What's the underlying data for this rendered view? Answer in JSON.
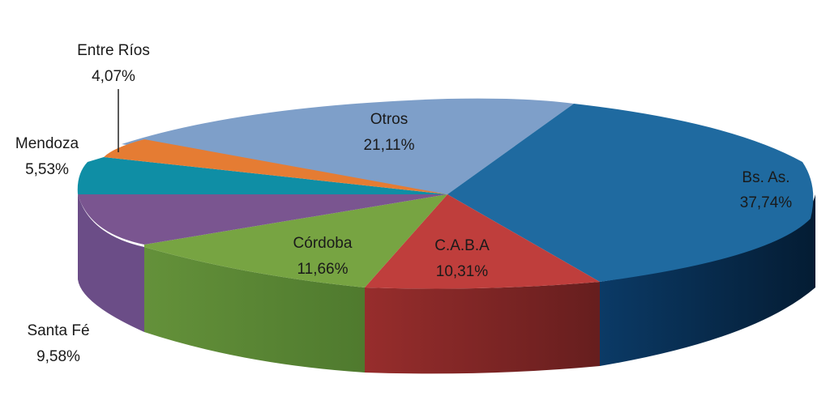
{
  "chart_data": {
    "type": "pie",
    "style": "3d",
    "title": "",
    "slices": [
      {
        "label": "Bs. As.",
        "value": 37.74,
        "display": "37,74%",
        "color": "#1f6aa0",
        "side_color": "#0a2b4d"
      },
      {
        "label": "C.A.B.A",
        "value": 10.31,
        "display": "10,31%",
        "color": "#bf3e3c",
        "side_color": "#7a2423"
      },
      {
        "label": "Córdoba",
        "value": 11.66,
        "display": "11,66%",
        "color": "#77a442",
        "side_color": "#5c8233"
      },
      {
        "label": "Santa Fé",
        "value": 9.58,
        "display": "9,58%",
        "color": "#7a5590",
        "side_color": "#684483"
      },
      {
        "label": "Mendoza",
        "value": 5.53,
        "display": "5,53%",
        "color": "#0f8ea5",
        "side_color": "#0a6a7c"
      },
      {
        "label": "Entre Ríos",
        "value": 4.07,
        "display": "4,07%",
        "color": "#e57c33",
        "side_color": "#b25d21"
      },
      {
        "label": "Otros",
        "value": 21.11,
        "display": "21,11%",
        "color": "#7e9fc9",
        "side_color": "#5e7fa8"
      }
    ],
    "legend": "none",
    "data_labels": "category name and percentage"
  }
}
